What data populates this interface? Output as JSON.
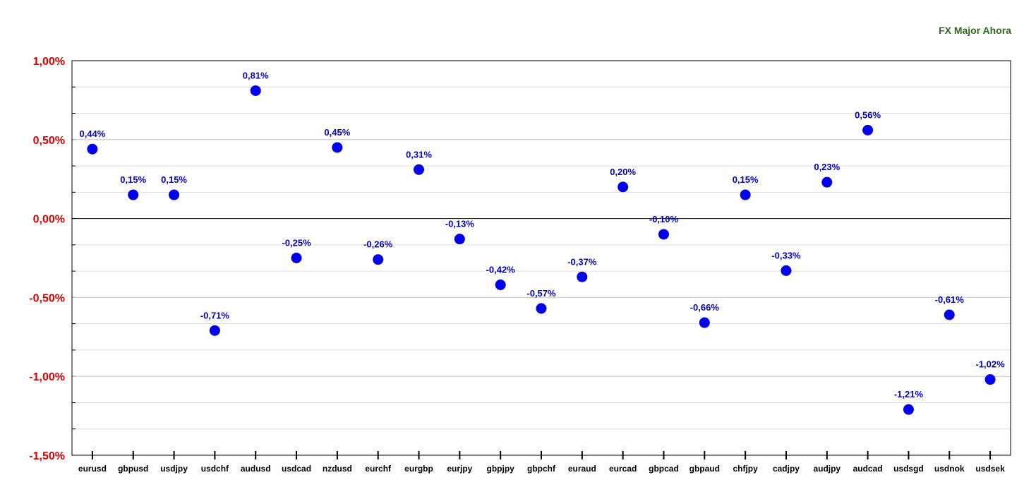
{
  "chart_data": {
    "type": "scatter",
    "title": "FX Major Ahora",
    "categories": [
      "eurusd",
      "gbpusd",
      "usdjpy",
      "usdchf",
      "audusd",
      "usdcad",
      "nzdusd",
      "eurchf",
      "eurgbp",
      "eurjpy",
      "gbpjpy",
      "gbpchf",
      "euraud",
      "eurcad",
      "gbpcad",
      "gbpaud",
      "chfjpy",
      "cadjpy",
      "audjpy",
      "audcad",
      "usdsgd",
      "usdnok",
      "usdsek"
    ],
    "values": [
      0.44,
      0.15,
      0.15,
      -0.71,
      0.81,
      -0.25,
      0.45,
      -0.26,
      0.31,
      -0.13,
      -0.42,
      -0.57,
      -0.37,
      0.2,
      -0.1,
      -0.66,
      0.15,
      -0.33,
      0.23,
      0.56,
      -1.21,
      -0.61,
      -1.02
    ],
    "data_labels": [
      "0,44%",
      "0,15%",
      "0,15%",
      "-0,71%",
      "0,81%",
      "-0,25%",
      "0,45%",
      "-0,26%",
      "0,31%",
      "-0,13%",
      "-0,42%",
      "-0,57%",
      "-0,37%",
      "0,20%",
      "-0,10%",
      "-0,66%",
      "0,15%",
      "-0,33%",
      "0,23%",
      "0,56%",
      "-1,21%",
      "-0,61%",
      "-1,02%"
    ],
    "yticks": [
      1.0,
      0.5,
      0.0,
      -0.5,
      -1.0,
      -1.5
    ],
    "ytick_labels": [
      "1,00%",
      "0,50%",
      "0,00%",
      "-0,50%",
      "-1,00%",
      "-1,50%"
    ],
    "ylim": [
      -1.5,
      1.0
    ],
    "grid": true,
    "colors": {
      "point": "#0000ee",
      "label": "#0000cc",
      "ytick": "#dd0000",
      "title": "#2e6b1a"
    }
  }
}
